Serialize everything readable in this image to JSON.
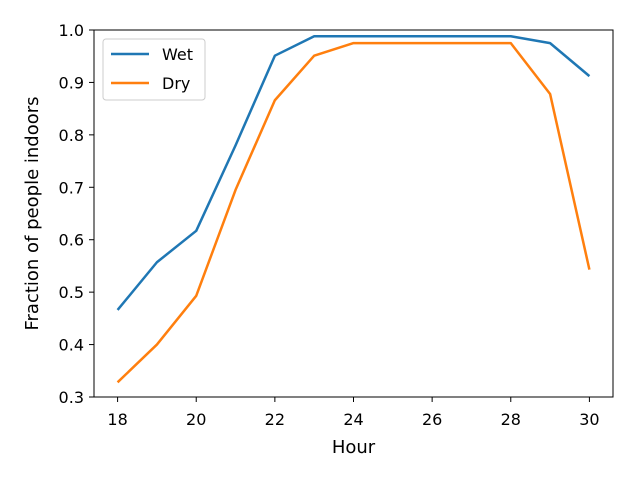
{
  "chart_data": {
    "type": "line",
    "title": "",
    "xlabel": "Hour",
    "ylabel": "Fraction of people indoors",
    "xlim": [
      17.4,
      30.6
    ],
    "ylim": [
      0.3,
      1.0
    ],
    "xticks": [
      18,
      20,
      22,
      24,
      26,
      28,
      30
    ],
    "yticks": [
      0.3,
      0.4,
      0.5,
      0.6,
      0.7,
      0.8,
      0.9,
      1.0
    ],
    "ytick_labels": [
      "0.3",
      "0.4",
      "0.5",
      "0.6",
      "0.7",
      "0.8",
      "0.9",
      "1.0"
    ],
    "grid": false,
    "legend_position": "upper-left",
    "x": [
      18,
      19,
      20,
      21,
      22,
      23,
      24,
      25,
      26,
      27,
      28,
      29,
      30
    ],
    "series": [
      {
        "name": "Wet",
        "color": "#1f77b4",
        "values": [
          0.466,
          0.557,
          0.617,
          0.78,
          0.951,
          0.988,
          0.988,
          0.988,
          0.988,
          0.988,
          0.988,
          0.975,
          0.912
        ]
      },
      {
        "name": "Dry",
        "color": "#ff7f0e",
        "values": [
          0.328,
          0.4,
          0.493,
          0.695,
          0.866,
          0.951,
          0.975,
          0.975,
          0.975,
          0.975,
          0.975,
          0.878,
          0.543
        ]
      }
    ]
  }
}
